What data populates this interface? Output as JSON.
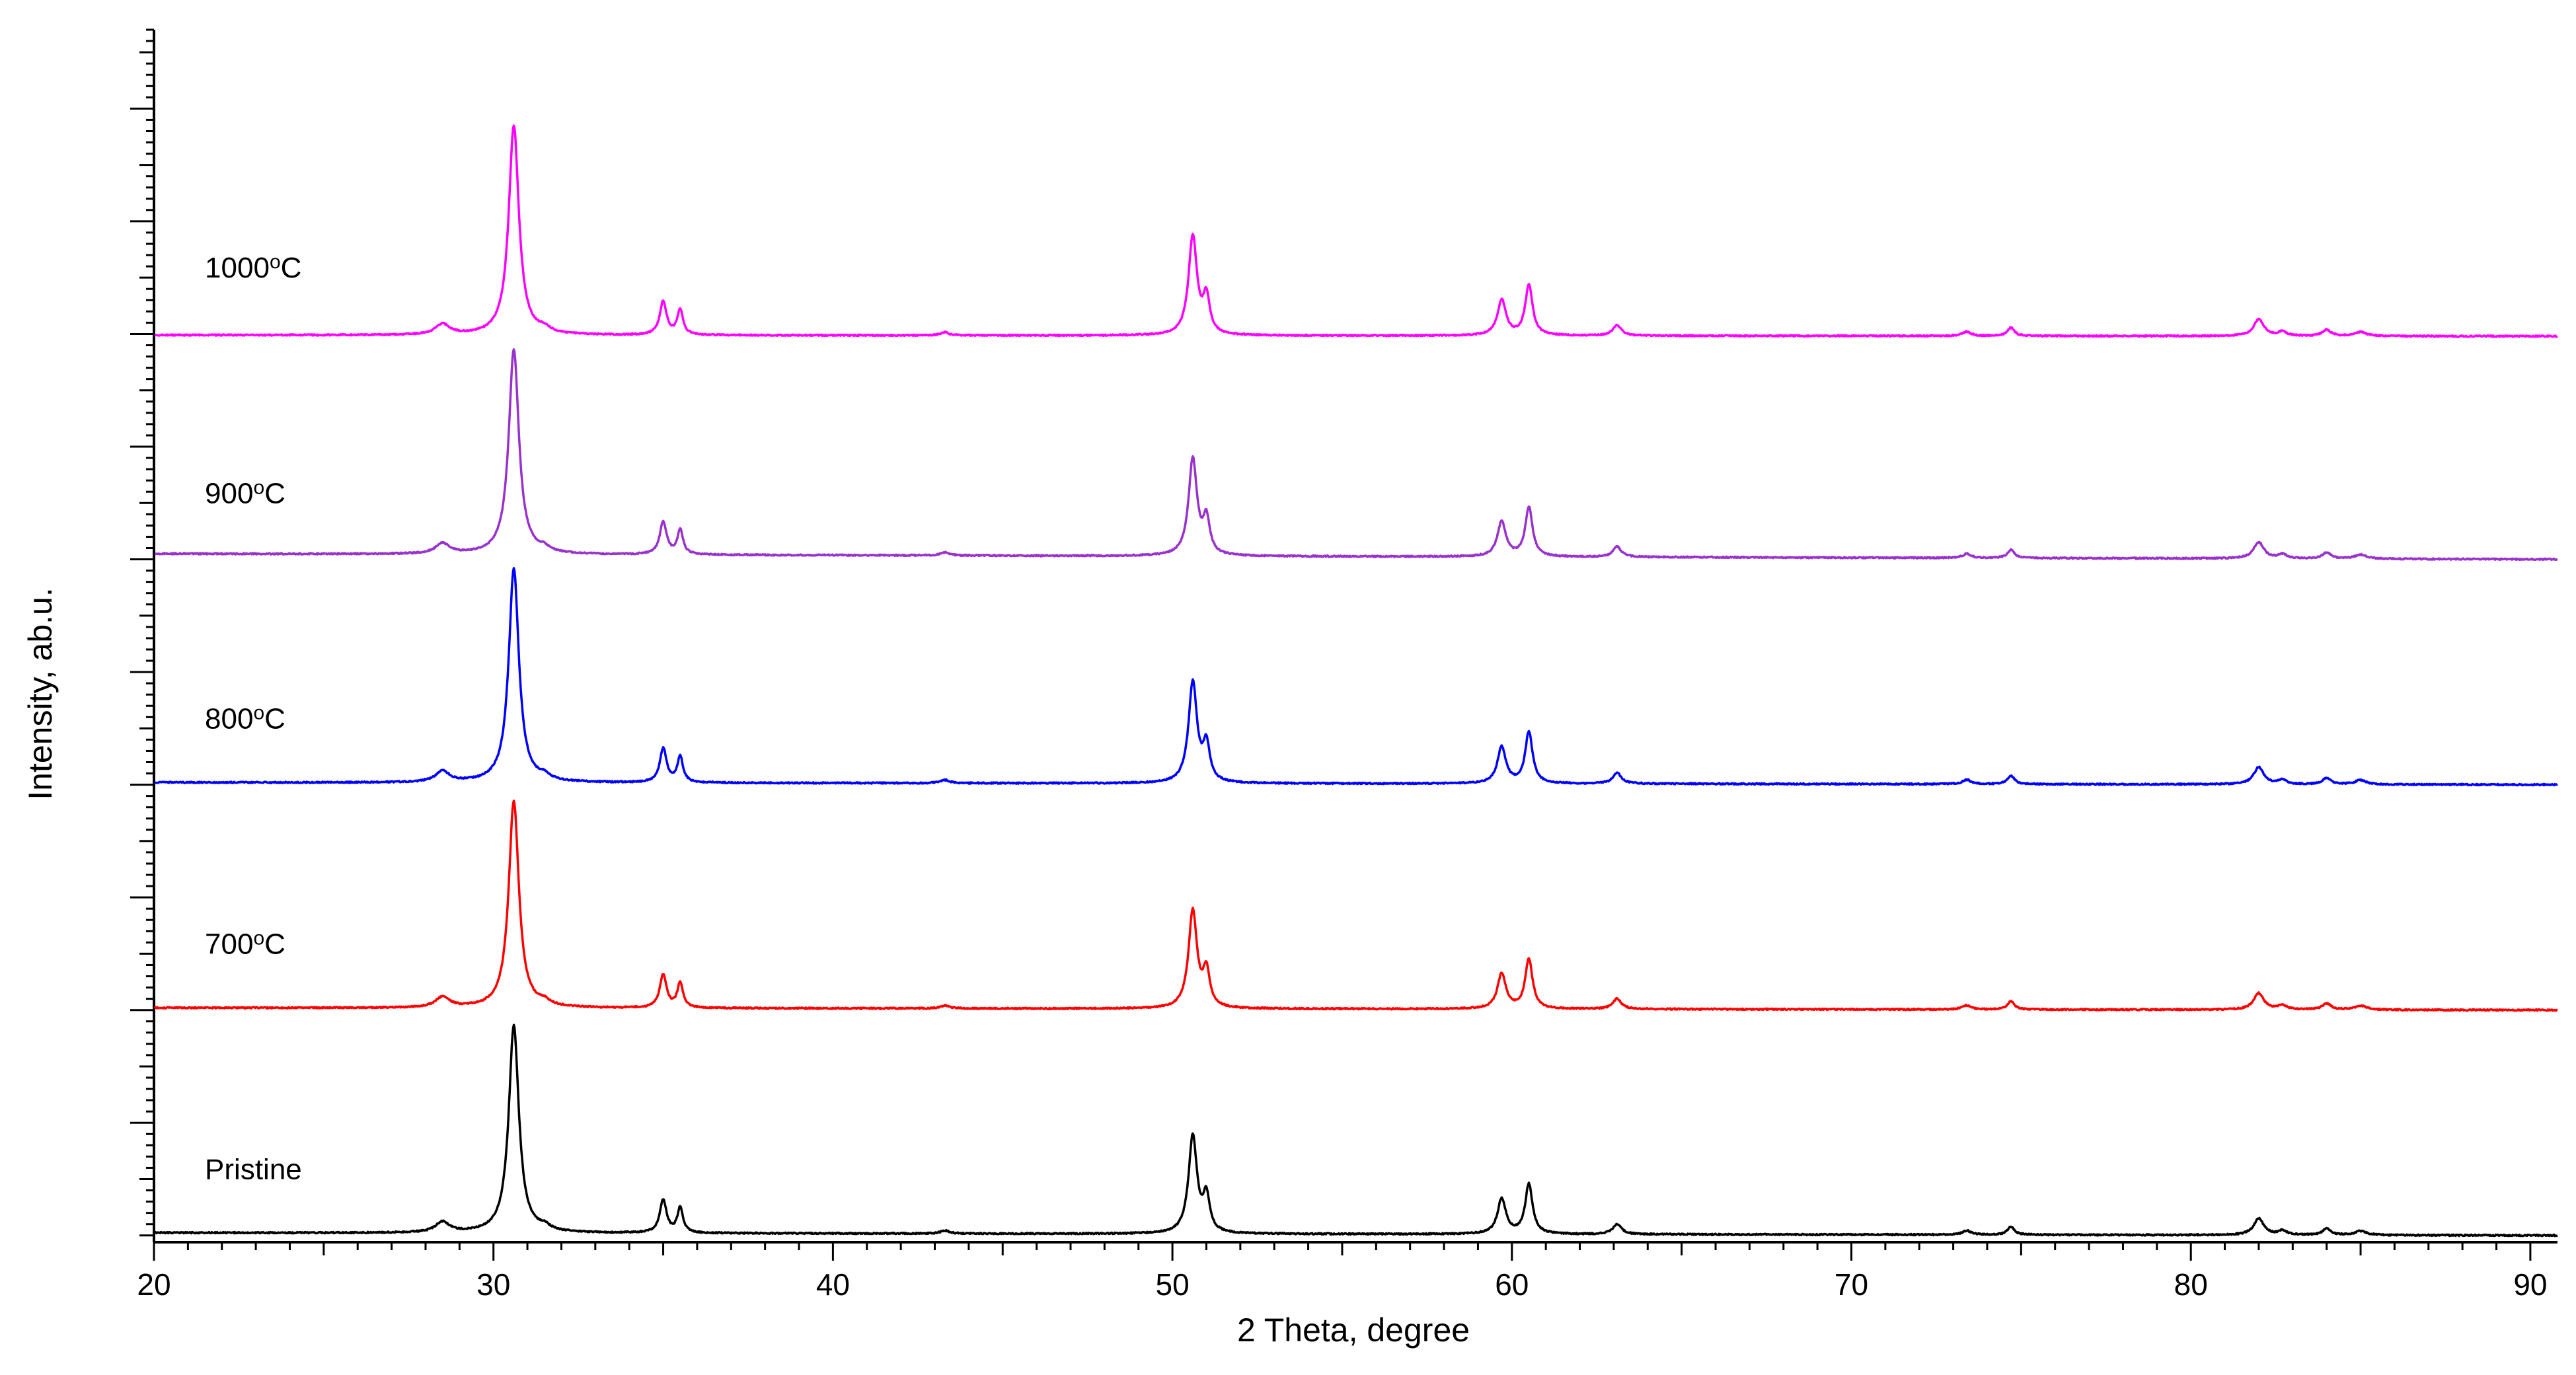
{
  "chart_data": {
    "type": "line",
    "xlabel": "2 Theta, degree",
    "ylabel": "Intensity, ab.u.",
    "xlim": [
      20,
      90.8
    ],
    "x_ticks": [
      20,
      30,
      40,
      50,
      60,
      70,
      80,
      90
    ],
    "y_tick_labels": false,
    "grid": false,
    "legend": "none (series labels placed on the left of each curve)",
    "offset_stacked": true,
    "peaks": [
      {
        "x": 28.5,
        "rel": 0.05,
        "w": 0.25
      },
      {
        "x": 30.6,
        "rel": 1.0,
        "w": 0.18
      },
      {
        "x": 31.5,
        "rel": 0.02,
        "w": 0.2
      },
      {
        "x": 35.0,
        "rel": 0.16,
        "w": 0.12
      },
      {
        "x": 35.5,
        "rel": 0.12,
        "w": 0.1
      },
      {
        "x": 43.3,
        "rel": 0.015,
        "w": 0.15
      },
      {
        "x": 50.6,
        "rel": 0.47,
        "w": 0.15
      },
      {
        "x": 51.0,
        "rel": 0.17,
        "w": 0.12
      },
      {
        "x": 59.7,
        "rel": 0.17,
        "w": 0.15
      },
      {
        "x": 60.5,
        "rel": 0.24,
        "w": 0.13
      },
      {
        "x": 63.1,
        "rel": 0.05,
        "w": 0.15
      },
      {
        "x": 73.4,
        "rel": 0.02,
        "w": 0.15
      },
      {
        "x": 74.7,
        "rel": 0.04,
        "w": 0.12
      },
      {
        "x": 82.0,
        "rel": 0.08,
        "w": 0.18
      },
      {
        "x": 82.7,
        "rel": 0.02,
        "w": 0.15
      },
      {
        "x": 84.0,
        "rel": 0.03,
        "w": 0.15
      },
      {
        "x": 85.0,
        "rel": 0.02,
        "w": 0.2
      }
    ],
    "series": [
      {
        "name": "Pristine",
        "label_main": "Pristine",
        "label_sup": "",
        "label_tail": "",
        "color": "#000000",
        "offset": 0,
        "base_start": 0.12,
        "base_end": 0,
        "peak_height": 9.2
      },
      {
        "name": "700°C",
        "label_main": "700",
        "label_sup": "o",
        "label_tail": "C",
        "color": "#ff0000",
        "offset": 10,
        "base_start": 0.1,
        "base_end": 0,
        "peak_height": 9.2
      },
      {
        "name": "800°C",
        "label_main": "800",
        "label_sup": "o",
        "label_tail": "C",
        "color": "#0000ff",
        "offset": 20,
        "base_start": 0.1,
        "base_end": 0,
        "peak_height": 9.5
      },
      {
        "name": "900°C",
        "label_main": "900",
        "label_sup": "o",
        "label_tail": "C",
        "color": "#9932cc",
        "offset": 30,
        "base_start": 0.25,
        "base_end": 0,
        "peak_height": 9.1
      },
      {
        "name": "1000°C",
        "label_main": "1000",
        "label_sup": "o",
        "label_tail": "C",
        "color": "#ff00ff",
        "offset": 40,
        "base_start": -0.05,
        "base_end": -0.1,
        "peak_height": 9.3
      }
    ],
    "ylim": [
      -0.3,
      53.5
    ]
  }
}
